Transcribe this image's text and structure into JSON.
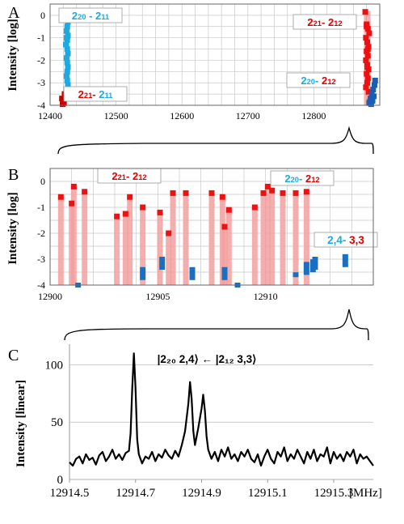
{
  "chart_data": [
    {
      "panel": "A",
      "type": "scatter",
      "ylabel": "Intensity [log]",
      "yscale": "log",
      "xlim": [
        12400,
        12900
      ],
      "ylim": [
        -4,
        0.5
      ],
      "x_ticks": [
        12400,
        12500,
        12600,
        12700,
        12800
      ],
      "y_ticks": [
        -4,
        -3,
        -2,
        -1,
        0
      ],
      "grid": true,
      "annotations": [
        {
          "prefix": "2",
          "sub": "20",
          "sep": " - ",
          "prefix2": "2",
          "sub2": "11",
          "color": "#1fa9e0",
          "x": 12425,
          "y": -0.05
        },
        {
          "prefix": "2",
          "sub": "21",
          "sep": "- ",
          "prefix2": "2",
          "sub2": "11",
          "color": "#e00000",
          "color2": "#1fa9e0",
          "x": 12425,
          "y": -3.6
        },
        {
          "prefix": "2",
          "sub": "21",
          "sep": "- ",
          "prefix2": "2",
          "sub2": "12",
          "color": "#e00000",
          "x": 12880,
          "y": -0.05
        },
        {
          "prefix": "2",
          "sub": "20",
          "sep": "- ",
          "prefix2": "2",
          "sub2": "12",
          "color": "#1fa9e0",
          "color2": "#e00000",
          "x": 12880,
          "y": -2.65
        }
      ],
      "series": [
        {
          "color": "#1fa9e0",
          "x": [
            12425,
            12426,
            12427,
            12426,
            12425,
            12427,
            12426,
            12424,
            12426,
            12427,
            12425,
            12426,
            12427,
            12426,
            12425,
            12426,
            12427,
            12426,
            12425
          ],
          "y": [
            0.05,
            -0.1,
            -0.3,
            -0.5,
            -0.7,
            -0.9,
            -1.1,
            -1.3,
            -1.5,
            -1.7,
            -1.9,
            -2.1,
            -2.3,
            -2.5,
            -2.7,
            -2.9,
            -3.1,
            -0.2,
            -1.0
          ]
        },
        {
          "color": "#cc0000",
          "x": [
            12418,
            12420,
            12422,
            12419,
            12421
          ],
          "y": [
            -3.7,
            -3.8,
            -3.5,
            -3.95,
            -3.9
          ]
        },
        {
          "color": "#ee1111",
          "x": [
            12878,
            12880,
            12882,
            12884,
            12879,
            12881,
            12883,
            12880,
            12882,
            12879,
            12881,
            12883,
            12880,
            12882,
            12881,
            12879,
            12883,
            12880,
            12882,
            12881
          ],
          "y": [
            0.15,
            -0.4,
            -0.6,
            -0.8,
            -1.0,
            -1.2,
            -1.4,
            -1.6,
            -1.8,
            -2.0,
            -2.2,
            -2.4,
            -2.6,
            -2.8,
            -3.0,
            -3.2,
            -3.4,
            -0.5,
            -1.5,
            -2.3
          ]
        },
        {
          "color": "#1a5fb4",
          "x": [
            12884,
            12886,
            12888,
            12890,
            12892,
            12887,
            12889,
            12891,
            12885,
            12893
          ],
          "y": [
            -3.9,
            -3.7,
            -3.5,
            -3.3,
            -3.1,
            -3.95,
            -3.8,
            -3.6,
            -3.85,
            -2.9
          ]
        }
      ]
    },
    {
      "panel": "B",
      "type": "bar",
      "ylabel": "Intensity [log]",
      "yscale": "log",
      "xlim": [
        12900,
        12915
      ],
      "ylim": [
        -4,
        0.5
      ],
      "x_ticks": [
        12900,
        12905,
        12910
      ],
      "y_ticks": [
        -4,
        -3,
        -2,
        -1,
        0
      ],
      "grid": true,
      "annotations": [
        {
          "prefix": "2",
          "sub": "21",
          "sep": "- ",
          "prefix2": "2",
          "sub2": "12",
          "color": "#e00000",
          "x": 12903.2,
          "y": 0.25
        },
        {
          "prefix": "2",
          "sub": "20",
          "sep": "- ",
          "prefix2": "2",
          "sub2": "12",
          "color": "#1fa9e0",
          "color2": "#e00000",
          "x": 12912.0,
          "y": 0.25
        },
        {
          "text1": "2,4",
          "sep": "- ",
          "text2": "3,3",
          "color": "#1fa9e0",
          "color2": "#e00000",
          "x": 12913.2,
          "y": -2.5
        }
      ],
      "series": [
        {
          "name": "",
          "color": "#ee1111",
          "x": [
            12900.5,
            12901.1,
            12901.0,
            12901.6,
            12903.1,
            12903.7,
            12903.5,
            12904.3,
            12905.1,
            12905.7,
            12905.5,
            12906.3,
            12907.5,
            12908.1,
            12908.0,
            12908.3,
            12909.5,
            12909.9,
            12910.1,
            12910.3,
            12910.8,
            12911.4,
            12911.9
          ],
          "y": [
            -0.6,
            -0.2,
            -0.85,
            -0.4,
            -1.35,
            -0.6,
            -1.25,
            -1.0,
            -1.2,
            -0.45,
            -2.0,
            -0.45,
            -0.45,
            -1.75,
            -0.6,
            -1.1,
            -1.0,
            -0.45,
            -0.2,
            -0.35,
            -0.45,
            -0.45,
            -0.4
          ]
        },
        {
          "name": "",
          "color": "#1a6fc0",
          "x": [
            12901.3,
            12904.3,
            12905.2,
            12906.6,
            12908.1,
            12908.7,
            12911.4,
            12911.9,
            12912.2,
            12912.3,
            12913.7
          ],
          "y": [
            -4.0,
            -3.4,
            -3.0,
            -3.4,
            -3.4,
            -4.0,
            -3.6,
            -3.2,
            -3.1,
            -3.0,
            -2.9
          ]
        }
      ]
    },
    {
      "panel": "C",
      "type": "line",
      "ylabel": "Intensity [linear]",
      "xlim": [
        12914.5,
        12915.42
      ],
      "ylim": [
        0,
        110
      ],
      "x_ticks": [
        12914.5,
        12914.7,
        12914.9,
        12915.1,
        12915.3
      ],
      "x_tick_labels": [
        "12914.5",
        "12914.7",
        "12914.9",
        "12915.1",
        "12915.3"
      ],
      "y_ticks": [
        0,
        50,
        100
      ],
      "unit_label": "[MHz]",
      "annotation": "|2₂₀ 2,4⟩ ← |2₁₂ 3,3⟩",
      "series": [
        {
          "color": "#000000",
          "x": [
            12914.5,
            12914.51,
            12914.52,
            12914.53,
            12914.54,
            12914.55,
            12914.56,
            12914.57,
            12914.58,
            12914.59,
            12914.6,
            12914.61,
            12914.62,
            12914.63,
            12914.64,
            12914.65,
            12914.66,
            12914.67,
            12914.68,
            12914.685,
            12914.69,
            12914.695,
            12914.7,
            12914.705,
            12914.71,
            12914.72,
            12914.73,
            12914.74,
            12914.75,
            12914.76,
            12914.77,
            12914.78,
            12914.79,
            12914.8,
            12914.81,
            12914.82,
            12914.83,
            12914.84,
            12914.85,
            12914.86,
            12914.865,
            12914.87,
            12914.875,
            12914.88,
            12914.89,
            12914.9,
            12914.905,
            12914.91,
            12914.915,
            12914.92,
            12914.93,
            12914.94,
            12914.95,
            12914.96,
            12914.97,
            12914.98,
            12914.99,
            12915.0,
            12915.01,
            12915.02,
            12915.03,
            12915.04,
            12915.05,
            12915.06,
            12915.07,
            12915.08,
            12915.09,
            12915.1,
            12915.11,
            12915.12,
            12915.13,
            12915.14,
            12915.15,
            12915.16,
            12915.17,
            12915.18,
            12915.19,
            12915.2,
            12915.21,
            12915.22,
            12915.23,
            12915.24,
            12915.25,
            12915.26,
            12915.27,
            12915.28,
            12915.29,
            12915.3,
            12915.31,
            12915.32,
            12915.33,
            12915.34,
            12915.35,
            12915.36,
            12915.37,
            12915.38,
            12915.39,
            12915.4,
            12915.41,
            12915.42
          ],
          "y": [
            15,
            12,
            18,
            20,
            14,
            22,
            17,
            19,
            13,
            21,
            24,
            16,
            20,
            26,
            18,
            22,
            17,
            23,
            25,
            40,
            80,
            110,
            80,
            35,
            22,
            14,
            20,
            18,
            24,
            16,
            22,
            19,
            26,
            21,
            18,
            25,
            20,
            30,
            42,
            66,
            85,
            70,
            42,
            30,
            45,
            62,
            74,
            60,
            38,
            26,
            18,
            24,
            16,
            26,
            20,
            28,
            18,
            22,
            16,
            24,
            20,
            26,
            18,
            15,
            22,
            12,
            20,
            26,
            18,
            14,
            24,
            20,
            28,
            16,
            22,
            18,
            26,
            20,
            14,
            24,
            18,
            26,
            16,
            22,
            20,
            28,
            14,
            24,
            18,
            22,
            16,
            24,
            20,
            26,
            14,
            22,
            18,
            20,
            16,
            12
          ]
        }
      ]
    }
  ]
}
